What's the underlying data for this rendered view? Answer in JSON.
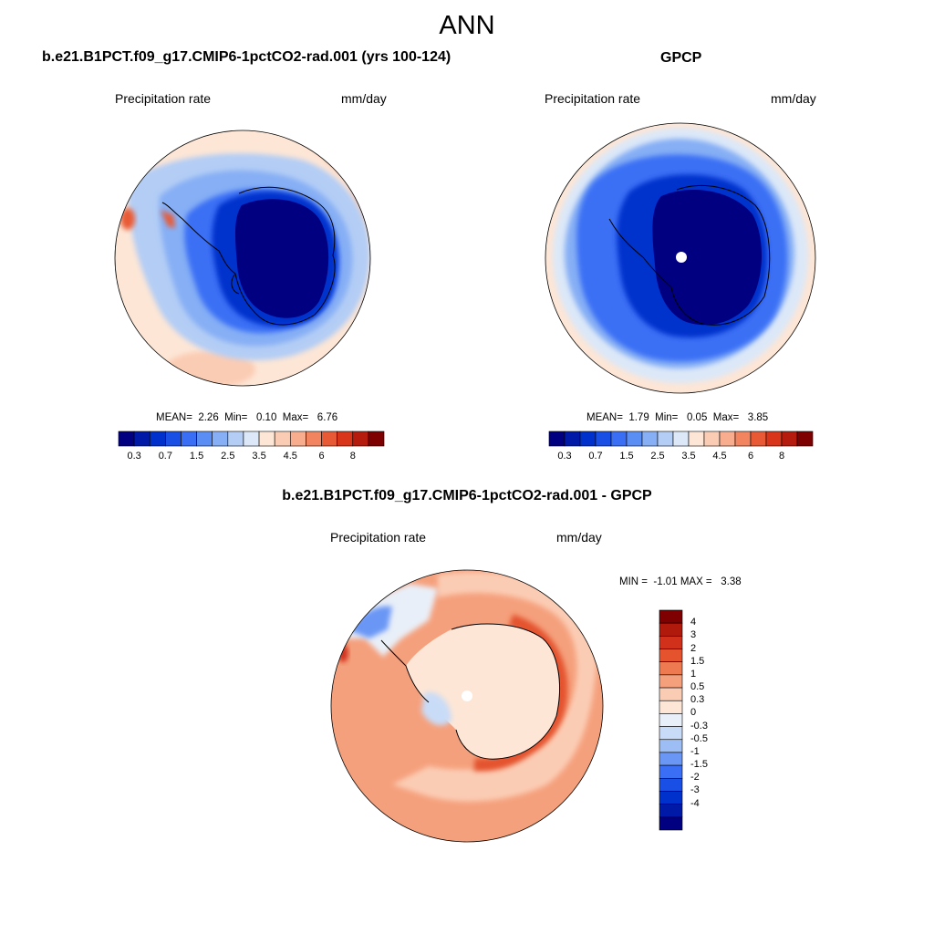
{
  "title": "ANN",
  "colors": {
    "seq": [
      "#000080",
      "#0019a6",
      "#0031cc",
      "#1a4fe6",
      "#3a6ff5",
      "#5b8ef5",
      "#86aff5",
      "#b3cdf5",
      "#dce8f8",
      "#fde6d6",
      "#fbccb4",
      "#f8ad8e",
      "#f2845f",
      "#e85a35",
      "#d8351b",
      "#b51c0e",
      "#7f0000"
    ],
    "diff": [
      "#000080",
      "#0019a6",
      "#0031cc",
      "#1a4fe6",
      "#3a6ff5",
      "#6a97f5",
      "#9dbdf5",
      "#c9dcf7",
      "#e9eff8",
      "#fde6d6",
      "#fbccb4",
      "#f5a07c",
      "#ee7a52",
      "#e4532e",
      "#d1301a",
      "#b01a0c",
      "#7f0000"
    ],
    "coast": "#000000"
  },
  "panels": {
    "model": {
      "title": "b.e21.B1PCT.f09_g17.CMIP6-1pctCO2-rad.001 (yrs 100-124)",
      "variable": "Precipitation rate",
      "units": "mm/day",
      "stats": {
        "mean_label": "MEAN=",
        "mean": "2.26",
        "min_label": "Min=",
        "min": "0.10",
        "max_label": "Max=",
        "max": "6.76"
      },
      "colorbar_ticks": [
        "0.3",
        "0.7",
        "1.5",
        "2.5",
        "3.5",
        "4.5",
        "6",
        "8"
      ]
    },
    "obs": {
      "title": "GPCP",
      "variable": "Precipitation rate",
      "units": "mm/day",
      "stats": {
        "mean_label": "MEAN=",
        "mean": "1.79",
        "min_label": "Min=",
        "min": "0.05",
        "max_label": "Max=",
        "max": "3.85"
      },
      "colorbar_ticks": [
        "0.3",
        "0.7",
        "1.5",
        "2.5",
        "3.5",
        "4.5",
        "6",
        "8"
      ]
    },
    "diff": {
      "title": "b.e21.B1PCT.f09_g17.CMIP6-1pctCO2-rad.001 - GPCP",
      "variable": "Precipitation rate",
      "units": "mm/day",
      "stats": {
        "min_label": "MIN =",
        "min": "-1.01",
        "max_label": "MAX =",
        "max": "3.38"
      },
      "colorbar_labels": [
        "4",
        "3",
        "2",
        "1.5",
        "1",
        "0.5",
        "0.3",
        "0",
        "-0.3",
        "-0.5",
        "-1",
        "-1.5",
        "-2",
        "-3",
        "-4"
      ]
    }
  }
}
